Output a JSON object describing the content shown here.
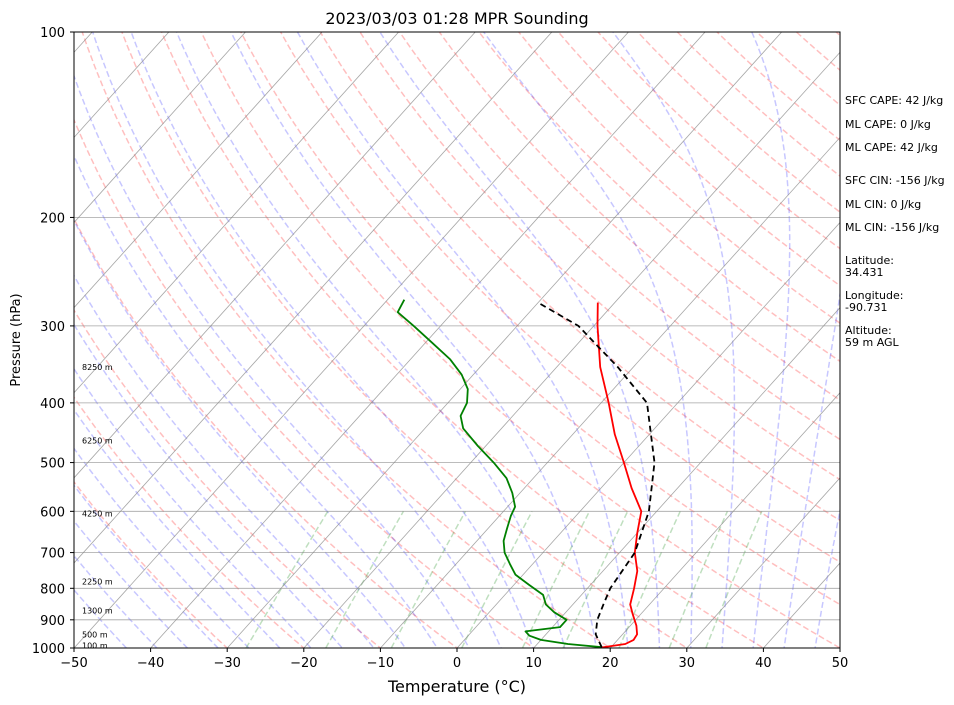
{
  "chart_data": {
    "type": "line",
    "title": "2023/03/03 01:28 MPR Sounding",
    "xlabel": "Temperature (°C)",
    "ylabel": "Pressure (hPa)",
    "xlim": [
      -50,
      50
    ],
    "ylim": [
      1000,
      100
    ],
    "yscale": "log",
    "skew": true,
    "grid": true,
    "x_ticks": [
      -50,
      -40,
      -30,
      -20,
      -10,
      0,
      10,
      20,
      30,
      40,
      50
    ],
    "y_ticks": [
      1000,
      900,
      800,
      700,
      600,
      500,
      400,
      300,
      200,
      100
    ],
    "height_labels": [
      {
        "label": "100 m",
        "p": 990
      },
      {
        "label": "500 m",
        "p": 950
      },
      {
        "label": "1300 m",
        "p": 870
      },
      {
        "label": "2250 m",
        "p": 780
      },
      {
        "label": "4250 m",
        "p": 605
      },
      {
        "label": "6250 m",
        "p": 460
      },
      {
        "label": "8250 m",
        "p": 350
      }
    ],
    "series": [
      {
        "name": "",
        "color": "#ff0000",
        "points": [
          [
            18.8,
            998
          ],
          [
            21.5,
            985
          ],
          [
            22.1,
            970
          ],
          [
            21.9,
            950
          ],
          [
            20.8,
            920
          ],
          [
            18.9,
            880
          ],
          [
            17.5,
            850
          ],
          [
            16.1,
            800
          ],
          [
            14.5,
            750
          ],
          [
            12.0,
            700
          ],
          [
            10.0,
            650
          ],
          [
            8.0,
            600
          ],
          [
            4.0,
            550
          ],
          [
            0.0,
            500
          ],
          [
            -4.5,
            450
          ],
          [
            -9.0,
            400
          ],
          [
            -14.3,
            350
          ],
          [
            -19.5,
            300
          ],
          [
            -22.2,
            275
          ]
        ]
      },
      {
        "name": "",
        "color": "#008000",
        "points": [
          [
            18.8,
            997
          ],
          [
            14.0,
            985
          ],
          [
            10.0,
            970
          ],
          [
            8.0,
            955
          ],
          [
            7.0,
            940
          ],
          [
            11.0,
            925
          ],
          [
            11.0,
            900
          ],
          [
            8.5,
            875
          ],
          [
            6.5,
            850
          ],
          [
            5.0,
            820
          ],
          [
            2.0,
            790
          ],
          [
            -1.0,
            760
          ],
          [
            -3.0,
            730
          ],
          [
            -5.0,
            700
          ],
          [
            -6.5,
            670
          ],
          [
            -7.5,
            640
          ],
          [
            -8.5,
            610
          ],
          [
            -9.0,
            590
          ],
          [
            -11.0,
            560
          ],
          [
            -13.5,
            530
          ],
          [
            -17.0,
            500
          ],
          [
            -21.0,
            470
          ],
          [
            -25.0,
            440
          ],
          [
            -26.8,
            420
          ],
          [
            -27.5,
            400
          ],
          [
            -29.0,
            380
          ],
          [
            -31.5,
            360
          ],
          [
            -34.8,
            340
          ],
          [
            -39.0,
            320
          ],
          [
            -43.5,
            300
          ],
          [
            -47.2,
            285
          ],
          [
            -47.8,
            272
          ]
        ]
      },
      {
        "name": "",
        "color": "#000000",
        "dashed": true,
        "points": [
          [
            18.8,
            997
          ],
          [
            16.5,
            950
          ],
          [
            15.0,
            900
          ],
          [
            14.0,
            850
          ],
          [
            13.0,
            800
          ],
          [
            12.0,
            700
          ],
          [
            9.0,
            600
          ],
          [
            4.0,
            500
          ],
          [
            -4.0,
            400
          ],
          [
            -12.0,
            350
          ],
          [
            -22.0,
            300
          ],
          [
            -30.0,
            275
          ]
        ]
      }
    ]
  },
  "side_panel": {
    "sfc_cape": "SFC CAPE: 42 J/kg",
    "ml_cape_1": "ML CAPE: 0 J/kg",
    "ml_cape_2": "ML CAPE: 42 J/kg",
    "sfc_cin": "SFC CIN: -156 J/kg",
    "ml_cin_1": "ML CIN: 0 J/kg",
    "ml_cin_2": "ML CIN: -156 J/kg",
    "latitude_label": "Latitude:",
    "latitude_value": "34.431",
    "longitude_label": "Longitude:",
    "longitude_value": "-90.731",
    "altitude_label": "Altitude:",
    "altitude_value": "59 m AGL"
  }
}
